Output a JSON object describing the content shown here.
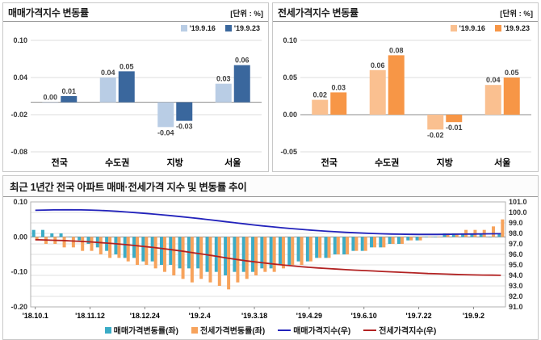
{
  "panels": {
    "sale": {
      "title": "매매가격지수 변동률",
      "unit": "[단위 : %]"
    },
    "jeonse": {
      "title": "전세가격지수 변동률",
      "unit": "[단위 : %]"
    },
    "trend": {
      "title": "최근 1년간 전국 아파트 매매·전세가격 지수 및 변동률 추이"
    }
  },
  "chart_data": [
    {
      "id": "sale-price-change",
      "type": "bar",
      "title": "매매가격지수 변동률",
      "unit": "[단위 : %]",
      "categories": [
        "전국",
        "수도권",
        "지방",
        "서울"
      ],
      "series": [
        {
          "name": "'19.9.16",
          "color": "#b9cde5",
          "values": [
            0.0,
            0.04,
            -0.04,
            0.03
          ]
        },
        {
          "name": "'19.9.23",
          "color": "#3a679d",
          "values": [
            0.01,
            0.05,
            -0.03,
            0.06
          ]
        }
      ],
      "ylim": [
        -0.08,
        0.1
      ],
      "yticks": [
        0.1,
        0.04,
        -0.02,
        -0.08
      ],
      "grid": true,
      "legend_position": "top-right"
    },
    {
      "id": "jeonse-price-change",
      "type": "bar",
      "title": "전세가격지수 변동률",
      "unit": "[단위 : %]",
      "categories": [
        "전국",
        "수도권",
        "지방",
        "서울"
      ],
      "series": [
        {
          "name": "'19.9.16",
          "color": "#fac090",
          "values": [
            0.02,
            0.06,
            -0.02,
            0.04
          ]
        },
        {
          "name": "'19.9.23",
          "color": "#f79646",
          "values": [
            0.03,
            0.08,
            -0.01,
            0.05
          ]
        }
      ],
      "ylim": [
        -0.05,
        0.1
      ],
      "yticks": [
        0.1,
        0.05,
        0.0,
        -0.05
      ],
      "grid": true,
      "legend_position": "top-right"
    },
    {
      "id": "yearly-trend",
      "type": "combo",
      "title": "최근 1년간 전국 아파트 매매·전세가격 지수 및 변동률 추이",
      "x_labels": [
        "'18.10.1",
        "'18.11.12",
        "'18.12.24",
        "'19.2.4",
        "'19.3.18",
        "'19.4.29",
        "'19.6.10",
        "'19.7.22",
        "'19.9.2"
      ],
      "x_label_indices": [
        0,
        6,
        12,
        18,
        24,
        30,
        36,
        42,
        48
      ],
      "bar_series": [
        {
          "name": "매매가격변동률(좌)",
          "color": "#3bacc6",
          "axis": "left",
          "values": [
            0.02,
            0.02,
            0.01,
            0.01,
            0.0,
            -0.01,
            -0.02,
            -0.03,
            -0.04,
            -0.05,
            -0.06,
            -0.06,
            -0.07,
            -0.07,
            -0.08,
            -0.08,
            -0.09,
            -0.09,
            -0.09,
            -0.1,
            -0.1,
            -0.11,
            -0.1,
            -0.1,
            -0.1,
            -0.09,
            -0.09,
            -0.08,
            -0.08,
            -0.07,
            -0.07,
            -0.06,
            -0.06,
            -0.05,
            -0.05,
            -0.04,
            -0.04,
            -0.03,
            -0.03,
            -0.02,
            -0.02,
            -0.01,
            -0.01,
            0.0,
            0.0,
            0.01,
            0.01,
            0.01,
            0.01,
            0.01,
            0.0,
            0.01
          ]
        },
        {
          "name": "전세가격변동률(좌)",
          "color": "#f7a35c",
          "axis": "left",
          "values": [
            -0.01,
            -0.02,
            -0.02,
            -0.03,
            -0.03,
            -0.04,
            -0.04,
            -0.05,
            -0.06,
            -0.06,
            -0.07,
            -0.08,
            -0.08,
            -0.09,
            -0.1,
            -0.11,
            -0.12,
            -0.13,
            -0.12,
            -0.13,
            -0.14,
            -0.15,
            -0.13,
            -0.12,
            -0.11,
            -0.1,
            -0.1,
            -0.09,
            -0.08,
            -0.08,
            -0.07,
            -0.06,
            -0.06,
            -0.05,
            -0.05,
            -0.04,
            -0.04,
            -0.03,
            -0.03,
            -0.02,
            -0.02,
            -0.01,
            -0.01,
            0.0,
            0.0,
            0.01,
            0.01,
            0.02,
            0.02,
            0.02,
            0.03,
            0.05
          ]
        }
      ],
      "line_series": [
        {
          "name": "매매가격지수(우)",
          "color": "#2222bb",
          "axis": "right",
          "values": [
            100.2,
            100.22,
            100.24,
            100.25,
            100.25,
            100.24,
            100.22,
            100.19,
            100.15,
            100.1,
            100.04,
            99.98,
            99.91,
            99.84,
            99.76,
            99.68,
            99.59,
            99.5,
            99.41,
            99.31,
            99.21,
            99.1,
            99.0,
            98.9,
            98.8,
            98.71,
            98.62,
            98.54,
            98.46,
            98.39,
            98.32,
            98.26,
            98.2,
            98.15,
            98.1,
            98.06,
            98.02,
            97.99,
            97.96,
            97.94,
            97.92,
            97.91,
            97.9,
            97.9,
            97.9,
            97.91,
            97.92,
            97.93,
            97.94,
            97.95,
            97.96,
            97.97
          ]
        },
        {
          "name": "전세가격지수(우)",
          "color": "#b22222",
          "axis": "right",
          "values": [
            97.4,
            97.38,
            97.35,
            97.32,
            97.28,
            97.24,
            97.19,
            97.13,
            97.07,
            97.0,
            96.92,
            96.84,
            96.75,
            96.65,
            96.55,
            96.44,
            96.32,
            96.19,
            96.07,
            95.94,
            95.8,
            95.65,
            95.52,
            95.4,
            95.29,
            95.19,
            95.09,
            95.0,
            94.92,
            94.84,
            94.77,
            94.71,
            94.65,
            94.6,
            94.55,
            94.5,
            94.46,
            94.42,
            94.38,
            94.34,
            94.3,
            94.26,
            94.22,
            94.18,
            94.15,
            94.12,
            94.09,
            94.07,
            94.05,
            94.03,
            94.02,
            94.01
          ]
        }
      ],
      "left_ylim": [
        -0.2,
        0.1
      ],
      "left_yticks": [
        0.1,
        0.0,
        -0.1,
        -0.2
      ],
      "right_ylim": [
        91.0,
        101.0
      ],
      "right_yticks": [
        101.0,
        100.0,
        99.0,
        98.0,
        97.0,
        96.0,
        95.0,
        94.0,
        93.0,
        92.0,
        91.0
      ],
      "grid": true,
      "legend_position": "bottom"
    }
  ]
}
